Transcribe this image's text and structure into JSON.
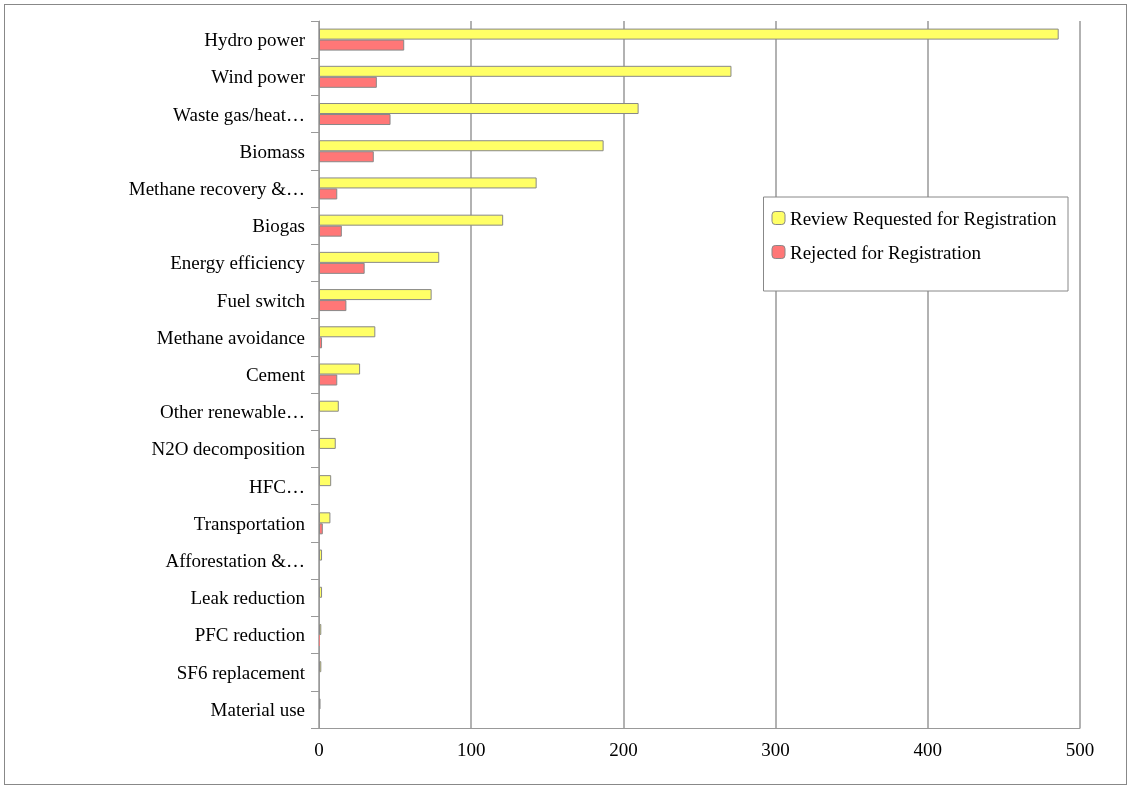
{
  "chart_data": {
    "type": "bar",
    "orientation": "horizontal",
    "categories": [
      "Hydro power",
      "Wind power",
      "Waste gas/heat…",
      "Biomass",
      "Methane recovery &…",
      "Biogas",
      "Energy efficiency",
      "Fuel switch",
      "Methane avoidance",
      "Cement",
      "Other renewable…",
      "N2O decomposition",
      "HFC…",
      "Transportation",
      "Afforestation &…",
      "Leak reduction",
      "PFC reduction",
      "SF6 replacement",
      "Material use"
    ],
    "series": [
      {
        "name": "Review Requested for Registration",
        "color": "#ffff66",
        "values": [
          486,
          271,
          210,
          187,
          143,
          121,
          79,
          74,
          37,
          27,
          13,
          11,
          8,
          7.5,
          2,
          2,
          1.5,
          1.5,
          1
        ]
      },
      {
        "name": "Rejected for Registration",
        "color": "#ff7777",
        "values": [
          56,
          38,
          47,
          36,
          12,
          15,
          30,
          18,
          2,
          12,
          null,
          null,
          null,
          2.5,
          null,
          null,
          0.5,
          null,
          null
        ]
      }
    ],
    "xlim": [
      0,
      500
    ],
    "xticks": [
      0,
      100,
      200,
      300,
      400,
      500
    ],
    "grid": "x",
    "legend": "right"
  }
}
